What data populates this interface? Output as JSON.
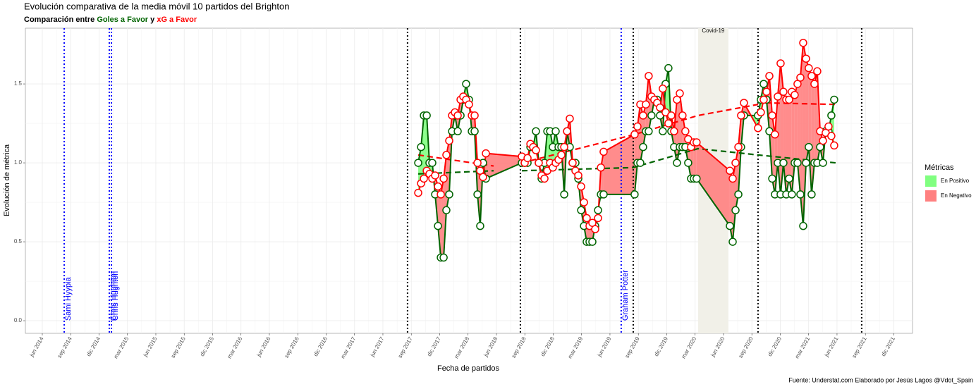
{
  "chart_data": {
    "type": "line",
    "title": "Evolución comparativa de la media móvil 10 partidos del Brighton",
    "subtitle": {
      "prefix": "Comparación entre",
      "joiner": "y"
    },
    "xlabel": "Fecha de partidos",
    "ylabel": "Evolución de métrica",
    "caption": "Fuente: Understat.com  Elaborado por Jesús Lagos @Vdot_Spain",
    "xlim": [
      2014.268,
      2022.082
    ],
    "ylim": [
      -0.08,
      1.853
    ],
    "grid": true,
    "yticks": [
      {
        "value": 0,
        "label": "0.0"
      },
      0.5,
      {
        "value": 1,
        "label": "1.0"
      },
      1.5
    ],
    "xticks": [
      {
        "value": 2014.417,
        "label": "jun 2014"
      },
      {
        "value": 2014.667,
        "label": "sep 2014"
      },
      {
        "value": 2014.917,
        "label": "dic 2014"
      },
      {
        "value": 2015.167,
        "label": "mar 2015"
      },
      {
        "value": 2015.417,
        "label": "jun 2015"
      },
      {
        "value": 2015.667,
        "label": "sep 2015"
      },
      {
        "value": 2015.917,
        "label": "dic 2015"
      },
      {
        "value": 2016.167,
        "label": "mar 2016"
      },
      {
        "value": 2016.417,
        "label": "jun 2016"
      },
      {
        "value": 2016.667,
        "label": "sep 2016"
      },
      {
        "value": 2016.917,
        "label": "dic 2016"
      },
      {
        "value": 2017.167,
        "label": "mar 2017"
      },
      {
        "value": 2017.417,
        "label": "jun 2017"
      },
      {
        "value": 2017.667,
        "label": "sep 2017"
      },
      {
        "value": 2017.917,
        "label": "dic 2017"
      },
      {
        "value": 2018.167,
        "label": "mar 2018"
      },
      {
        "value": 2018.417,
        "label": "jun 2018"
      },
      {
        "value": 2018.667,
        "label": "sep 2018"
      },
      {
        "value": 2018.917,
        "label": "dic 2018"
      },
      {
        "value": 2019.167,
        "label": "mar 2019"
      },
      {
        "value": 2019.417,
        "label": "jun 2019"
      },
      {
        "value": 2019.667,
        "label": "sep 2019"
      },
      {
        "value": 2019.917,
        "label": "dic 2019"
      },
      {
        "value": 2020.167,
        "label": "mar 2020"
      },
      {
        "value": 2020.417,
        "label": "jun 2020"
      },
      {
        "value": 2020.667,
        "label": "sep 2020"
      },
      {
        "value": 2020.917,
        "label": "dic 2020"
      },
      {
        "value": 2021.167,
        "label": "mar 2021"
      },
      {
        "value": 2021.417,
        "label": "jun 2021"
      },
      {
        "value": 2021.667,
        "label": "sep 2021"
      },
      {
        "value": 2021.917,
        "label": "dic 2021"
      }
    ],
    "x": [
      2017.728,
      2017.753,
      2017.778,
      2017.803,
      2017.827,
      2017.852,
      2017.877,
      2017.902,
      2017.927,
      2017.952,
      2017.976,
      2018.001,
      2018.026,
      2018.051,
      2018.076,
      2018.101,
      2018.125,
      2018.15,
      2018.175,
      2018.2,
      2018.225,
      2018.25,
      2018.274,
      2018.299,
      2018.324,
      2018.641,
      2018.666,
      2018.691,
      2018.716,
      2018.741,
      2018.765,
      2018.79,
      2018.815,
      2018.84,
      2018.865,
      2018.89,
      2018.914,
      2018.939,
      2018.964,
      2018.989,
      2019.014,
      2019.039,
      2019.063,
      2019.088,
      2019.113,
      2019.138,
      2019.163,
      2019.188,
      2019.212,
      2019.237,
      2019.262,
      2019.287,
      2019.312,
      2019.337,
      2019.361,
      2019.634,
      2019.659,
      2019.684,
      2019.709,
      2019.733,
      2019.758,
      2019.783,
      2019.808,
      2019.833,
      2019.858,
      2019.882,
      2019.907,
      2019.932,
      2019.957,
      2019.982,
      2020.007,
      2020.032,
      2020.056,
      2020.081,
      2020.106,
      2020.131,
      2020.156,
      2020.18,
      2020.473,
      2020.498,
      2020.523,
      2020.548,
      2020.572,
      2020.597,
      2020.721,
      2020.746,
      2020.771,
      2020.796,
      2020.821,
      2020.846,
      2020.87,
      2020.895,
      2020.92,
      2020.945,
      2020.97,
      2020.995,
      2021.019,
      2021.044,
      2021.069,
      2021.094,
      2021.119,
      2021.144,
      2021.168,
      2021.193,
      2021.218,
      2021.243,
      2021.268,
      2021.293,
      2021.317,
      2021.342,
      2021.367,
      2021.392
    ],
    "series": [
      {
        "name": "Goles a Favor",
        "color": "#006400",
        "values": [
          1.0,
          1.1,
          1.3,
          1.3,
          1.0,
          1.0,
          0.8,
          0.6,
          0.4,
          0.4,
          0.7,
          0.8,
          1.2,
          1.3,
          1.2,
          1.3,
          1.4,
          1.5,
          1.4,
          1.2,
          1.2,
          0.8,
          0.6,
          1.0,
          0.9,
          1.0,
          1.0,
          1.0,
          1.1,
          1.1,
          1.2,
          1.0,
          0.9,
          1.0,
          1.2,
          1.2,
          1.1,
          1.2,
          1.1,
          1.1,
          0.8,
          1.2,
          1.1,
          1.0,
          1.0,
          0.9,
          0.7,
          0.6,
          0.5,
          0.5,
          0.5,
          0.6,
          0.7,
          0.8,
          0.8,
          0.8,
          1.0,
          1.0,
          1.1,
          1.2,
          1.2,
          1.3,
          1.4,
          1.4,
          1.3,
          1.2,
          1.5,
          1.6,
          1.2,
          1.1,
          1.0,
          1.1,
          1.1,
          1.1,
          1.0,
          0.9,
          0.9,
          0.9,
          0.6,
          0.5,
          0.7,
          0.8,
          1.1,
          1.3,
          1.3,
          1.4,
          1.5,
          1.4,
          1.2,
          0.9,
          0.8,
          1.0,
          0.8,
          1.0,
          0.8,
          0.9,
          0.8,
          1.0,
          1.0,
          0.8,
          0.6,
          1.0,
          1.1,
          0.8,
          1.0,
          1.0,
          1.1,
          1.0,
          1.2,
          1.2,
          1.3,
          1.4
        ],
        "trend": {
          "x": [
            2017.728,
            2018.392,
            null,
            2018.641,
            2019.622,
            2020.193,
            2020.721,
            2021.404
          ],
          "values": [
            0.93,
            0.95,
            null,
            0.95,
            0.97,
            1.09,
            1.05,
            1.0
          ]
        }
      },
      {
        "name": "xG a Favor",
        "color": "#ff0000",
        "values": [
          0.81,
          0.87,
          0.9,
          0.95,
          0.93,
          0.9,
          0.92,
          0.85,
          0.8,
          0.9,
          1.05,
          1.14,
          1.3,
          1.32,
          1.3,
          1.4,
          1.42,
          1.4,
          1.37,
          1.3,
          1.3,
          1.0,
          0.95,
          0.91,
          1.06,
          1.04,
          1.0,
          1.03,
          1.12,
          1.1,
          1.08,
          1.0,
          0.92,
          0.9,
          0.95,
          1.0,
          0.97,
          1.0,
          1.02,
          1.05,
          1.1,
          1.2,
          1.28,
          1.0,
          0.95,
          0.92,
          0.85,
          0.75,
          0.65,
          0.6,
          0.62,
          0.58,
          0.65,
          0.97,
          1.07,
          1.18,
          1.23,
          1.37,
          1.3,
          1.37,
          1.55,
          1.42,
          1.4,
          1.38,
          1.35,
          1.47,
          1.32,
          1.25,
          1.3,
          1.2,
          1.4,
          1.44,
          1.3,
          1.2,
          1.15,
          1.1,
          1.13,
          1.13,
          0.95,
          0.9,
          1.0,
          1.1,
          1.3,
          1.38,
          1.22,
          1.32,
          1.4,
          1.45,
          1.55,
          1.3,
          1.18,
          1.42,
          1.63,
          1.45,
          1.4,
          1.4,
          1.45,
          1.43,
          1.5,
          1.54,
          1.76,
          1.66,
          1.6,
          1.55,
          1.5,
          1.58,
          1.2,
          1.14,
          1.19,
          1.23,
          1.17,
          1.11
        ],
        "trend": {
          "x": [
            2017.728,
            2018.392,
            null,
            2018.641,
            2019.634,
            2020.193,
            2020.721,
            null,
            2020.783,
            2021.404
          ],
          "values": [
            1.05,
            0.98,
            null,
            1.0,
            1.18,
            1.3,
            1.37,
            null,
            1.38,
            1.37
          ]
        }
      }
    ],
    "legend": {
      "title": "Métricas",
      "position": "right",
      "entries": [
        {
          "name": "En Positivo",
          "color": "#80ff80"
        },
        {
          "name": "En Negativo",
          "color": "#ff8080"
        }
      ]
    },
    "vlines": [
      {
        "x": 2014.61,
        "color": "#0000ff",
        "label": "Sami Hyypia"
      },
      {
        "x": 2015.007,
        "color": "#0000ff",
        "label": "Chris Hughton"
      },
      {
        "x": 2015.026,
        "color": "#0000ff",
        "label": "Chris Hughton"
      },
      {
        "x": 2019.516,
        "color": "#0000ff",
        "label": "Graham Potter"
      },
      {
        "x": 2017.634,
        "color": "#000000"
      },
      {
        "x": 2018.628,
        "color": "#000000"
      },
      {
        "x": 2019.622,
        "color": "#000000"
      },
      {
        "x": 2020.721,
        "color": "#000000"
      },
      {
        "x": 2021.634,
        "color": "#000000"
      }
    ],
    "band": {
      "x": [
        2020.193,
        2020.46
      ],
      "color": "#f1f0e8",
      "label": "Covid-19"
    }
  }
}
